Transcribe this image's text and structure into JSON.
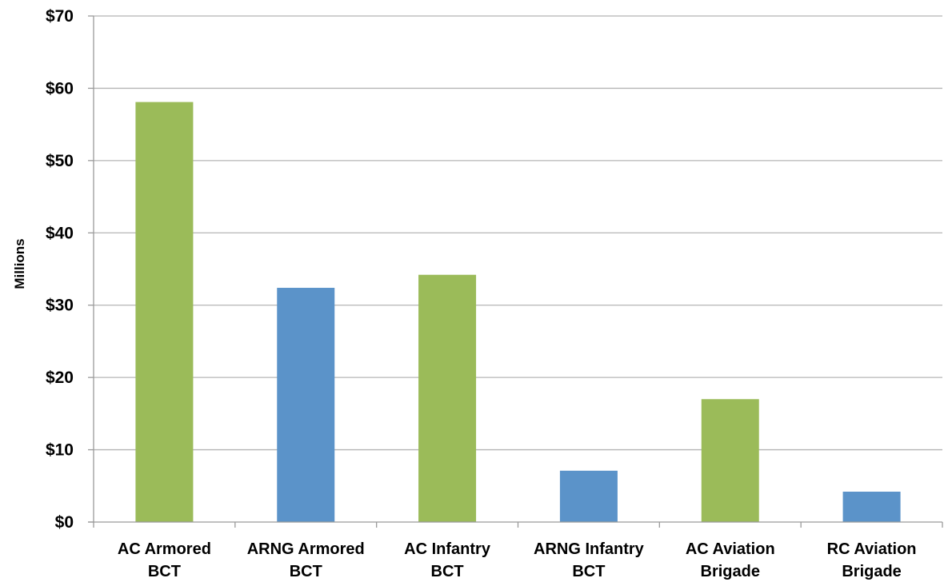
{
  "chart_data": {
    "type": "bar",
    "title": "",
    "xlabel": "",
    "ylabel": "Millions",
    "ylim": [
      0,
      70
    ],
    "yticks": [
      0,
      10,
      20,
      30,
      40,
      50,
      60,
      70
    ],
    "ytick_labels": [
      "$0",
      "$10",
      "$20",
      "$30",
      "$40",
      "$50",
      "$60",
      "$70"
    ],
    "categories": [
      [
        "AC Armored",
        "BCT"
      ],
      [
        "ARNG Armored",
        "BCT"
      ],
      [
        "AC Infantry",
        "BCT"
      ],
      [
        "ARNG Infantry",
        "BCT"
      ],
      [
        "AC Aviation",
        "Brigade"
      ],
      [
        "RC Aviation",
        "Brigade"
      ]
    ],
    "values": [
      58.1,
      32.4,
      34.2,
      7.1,
      17.0,
      4.2
    ],
    "bar_colors": [
      "#9bbb59",
      "#5b93c9",
      "#9bbb59",
      "#5b93c9",
      "#9bbb59",
      "#5b93c9"
    ],
    "grid": true,
    "legend": "none"
  }
}
